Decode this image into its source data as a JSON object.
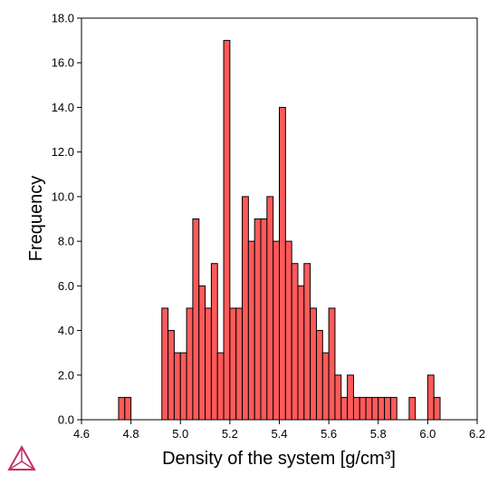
{
  "chart_data": {
    "type": "bar",
    "title": "",
    "xlabel": "Density of the system [g/cm³]",
    "ylabel": "Frequency",
    "xlim": [
      4.6,
      6.2
    ],
    "ylim": [
      0,
      18
    ],
    "bin_width": 0.025,
    "x_ticks": [
      "4.6",
      "4.8",
      "5.0",
      "5.2",
      "5.4",
      "5.6",
      "5.8",
      "6.0",
      "6.2"
    ],
    "y_ticks": [
      "0.0",
      "2.0",
      "4.0",
      "6.0",
      "8.0",
      "10.0",
      "12.0",
      "14.0",
      "16.0",
      "18.0"
    ],
    "x": [
      4.7625,
      4.7875,
      4.9375,
      4.9625,
      4.9875,
      5.0125,
      5.0375,
      5.0625,
      5.0875,
      5.1125,
      5.1375,
      5.1625,
      5.1875,
      5.2125,
      5.2375,
      5.2625,
      5.2875,
      5.3125,
      5.3375,
      5.3625,
      5.3875,
      5.4125,
      5.4375,
      5.4625,
      5.4875,
      5.5125,
      5.5375,
      5.5625,
      5.5875,
      5.6125,
      5.6375,
      5.6625,
      5.6875,
      5.7125,
      5.7375,
      5.7625,
      5.7875,
      5.8125,
      5.8375,
      5.8625,
      5.9375,
      6.0125,
      6.0375
    ],
    "values": [
      1,
      1,
      5,
      4,
      3,
      3,
      5,
      9,
      6,
      5,
      7,
      3,
      17,
      5,
      5,
      10,
      8,
      9,
      9,
      10,
      8,
      14,
      8,
      7,
      6,
      7,
      5,
      4,
      3,
      5,
      2,
      1,
      2,
      1,
      1,
      1,
      1,
      1,
      1,
      1,
      1,
      2,
      1
    ],
    "bar_color": "#ff5a5a",
    "grid": false
  },
  "logo": {
    "name": "thermo-calc-logo",
    "color": "#c0306a"
  }
}
